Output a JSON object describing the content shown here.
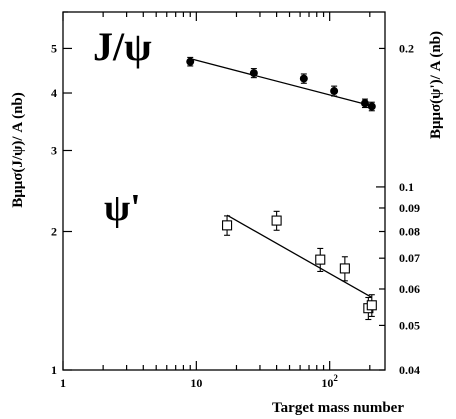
{
  "chart_data": {
    "type": "scatter",
    "xlabel": "Target mass number",
    "ylabel_left": "Bμμσ(J/ψ)/ A (nb)",
    "ylabel_right": "Bμμσ(ψ')/ A (nb)",
    "x_scale": "log",
    "y_scale": "log",
    "xlim": [
      1,
      260
    ],
    "ylim_left": [
      1,
      6
    ],
    "ylim_right": [
      0.04,
      0.24
    ],
    "x_ticks": [
      {
        "value": 1,
        "label": "1"
      },
      {
        "value": 10,
        "label": "10"
      },
      {
        "value": 100,
        "label": "10",
        "sup": "2"
      }
    ],
    "y_ticks_left": [
      {
        "value": 1,
        "label": "1"
      },
      {
        "value": 2,
        "label": "2"
      },
      {
        "value": 3,
        "label": "3"
      },
      {
        "value": 4,
        "label": "4"
      },
      {
        "value": 5,
        "label": "5"
      }
    ],
    "y_ticks_right": [
      {
        "value": 0.04,
        "label": "0.04"
      },
      {
        "value": 0.05,
        "label": "0.05"
      },
      {
        "value": 0.06,
        "label": "0.06"
      },
      {
        "value": 0.07,
        "label": "0.07"
      },
      {
        "value": 0.08,
        "label": "0.08"
      },
      {
        "value": 0.09,
        "label": "0.09"
      },
      {
        "value": 0.1,
        "label": "0.1"
      },
      {
        "value": 0.2,
        "label": "0.2"
      }
    ],
    "annotations": {
      "jpsi": "J/ψ",
      "psiprime": "ψ'"
    },
    "series": [
      {
        "label_key": "jpsi",
        "axis": "left",
        "marker": "filled-circle",
        "points": [
          {
            "x": 9,
            "y": 4.68,
            "err": 0.1
          },
          {
            "x": 27,
            "y": 4.42,
            "err": 0.1
          },
          {
            "x": 64,
            "y": 4.3,
            "err": 0.1
          },
          {
            "x": 108,
            "y": 4.04,
            "err": 0.1
          },
          {
            "x": 184,
            "y": 3.8,
            "err": 0.08
          },
          {
            "x": 207,
            "y": 3.74,
            "err": 0.08
          }
        ],
        "fit": [
          {
            "x": 9,
            "y": 4.75
          },
          {
            "x": 207,
            "y": 3.75
          }
        ]
      },
      {
        "label_key": "psiprime",
        "axis": "right",
        "marker": "open-square",
        "points": [
          {
            "x": 17,
            "y": 0.0825,
            "err": 0.004
          },
          {
            "x": 40,
            "y": 0.0845,
            "err": 0.004
          },
          {
            "x": 85,
            "y": 0.0695,
            "err": 0.004
          },
          {
            "x": 130,
            "y": 0.0665,
            "err": 0.004
          },
          {
            "x": 195,
            "y": 0.0545,
            "err": 0.003
          },
          {
            "x": 207,
            "y": 0.0553,
            "err": 0.003
          }
        ],
        "fit": [
          {
            "x": 17,
            "y": 0.0868
          },
          {
            "x": 207,
            "y": 0.0575
          }
        ]
      }
    ]
  }
}
